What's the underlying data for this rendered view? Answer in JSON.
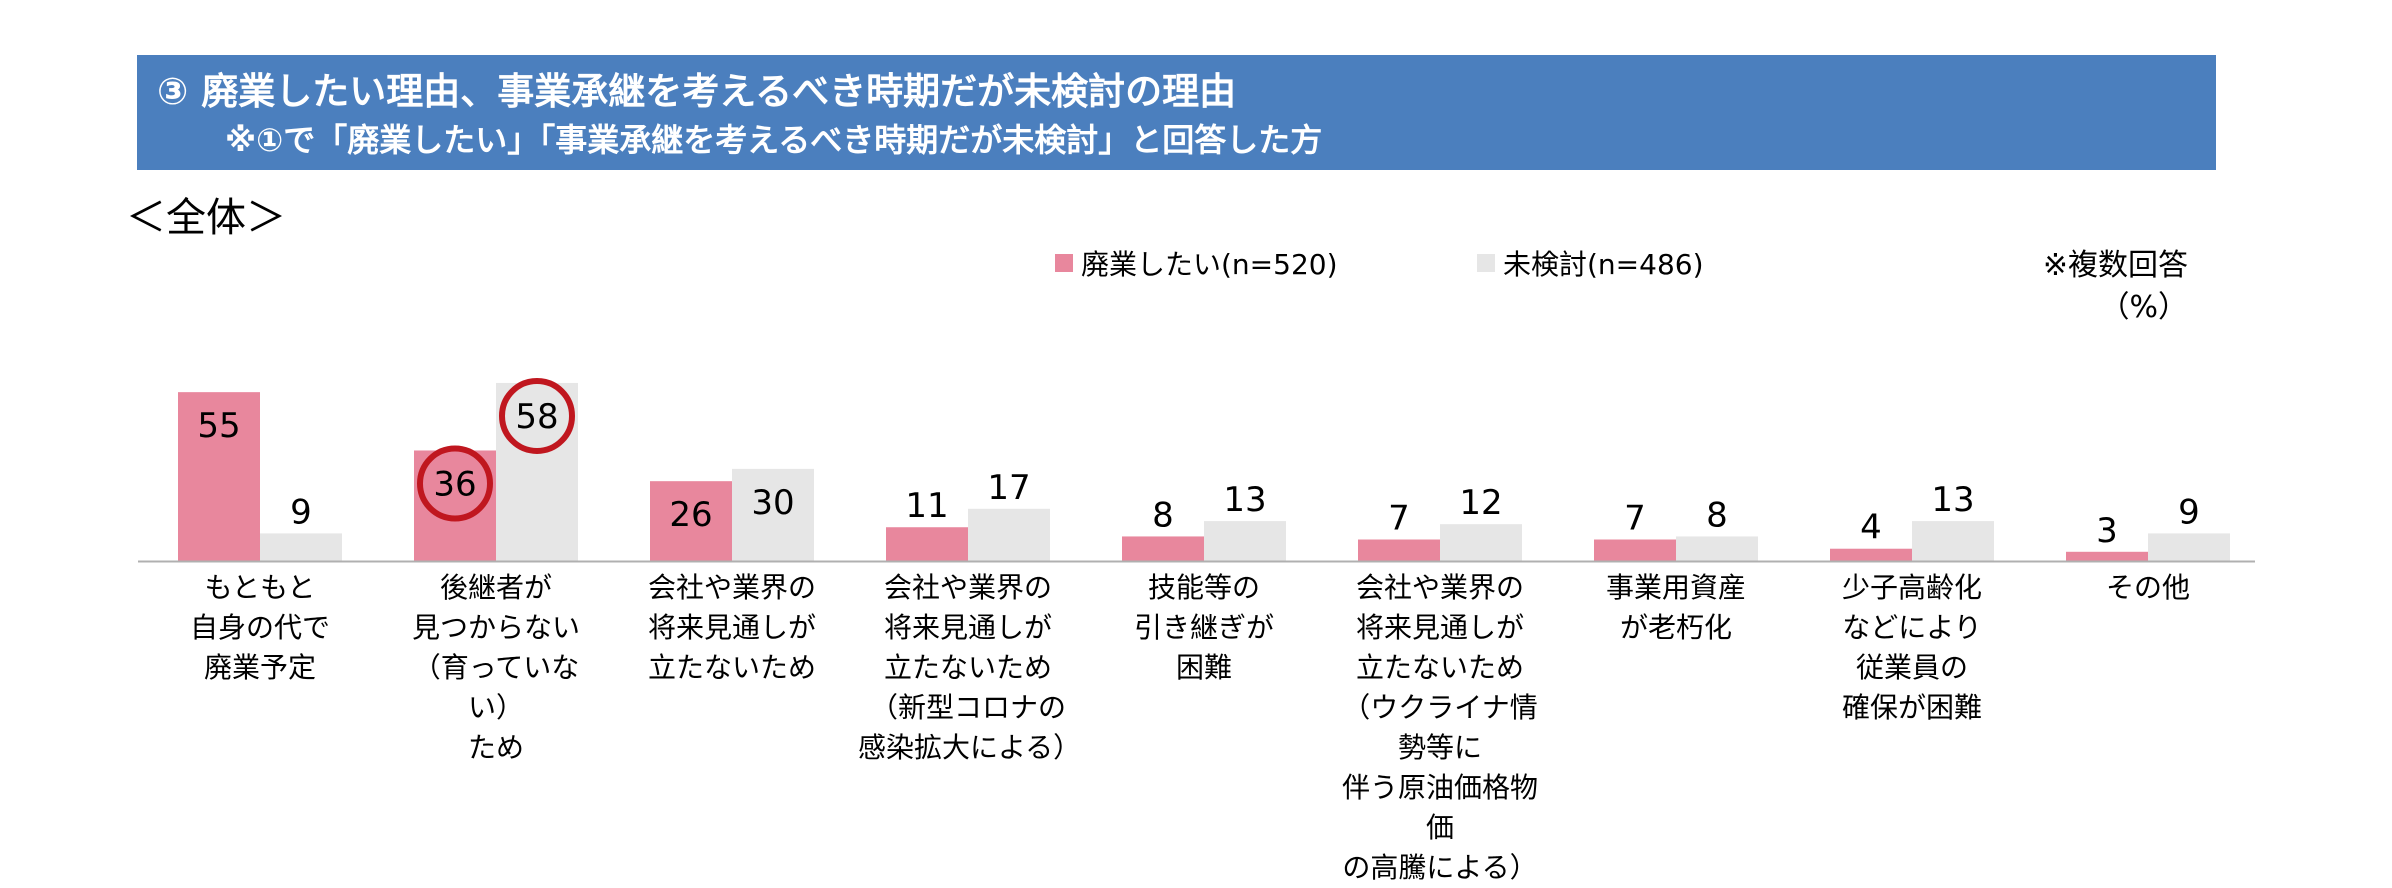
{
  "banner": {
    "title": "③ 廃業したい理由、事業承継を考えるべき時期だが未検討の理由",
    "subtitle": "※①で「廃業したい」「事業承継を考えるべき時期だが未検討」と回答した方"
  },
  "section_label": "＜全体＞",
  "note": {
    "multi": "※複数回答",
    "unit": "（%）"
  },
  "colors": {
    "banner": "#4b7fbe",
    "series_a": "#e8879d",
    "series_b": "#e6e6e6",
    "highlight_ring": "#c0171f",
    "axis": "#b0b0b0"
  },
  "chart_data": {
    "type": "bar",
    "categories": [
      "もともと\n自身の代で\n廃業予定",
      "後継者が\n見つからない\n（育っていない）\nため",
      "会社や業界の\n将来見通しが\n立たないため",
      "会社や業界の\n将来見通しが\n立たないため\n（新型コロナの\n感染拡大による）",
      "技能等の\n引き継ぎが\n困難",
      "会社や業界の\n将来見通しが\n立たないため\n（ウクライナ情勢等に\n伴う原油価格物価\nの高騰による）",
      "事業用資産\nが老朽化",
      "少子高齢化\nなどにより\n従業員の\n確保が困難",
      "その他"
    ],
    "series": [
      {
        "name": "廃業したい(n=520)",
        "values": [
          55,
          36,
          26,
          11,
          8,
          7,
          7,
          4,
          3
        ]
      },
      {
        "name": "未検討(n=486)",
        "values": [
          9,
          58,
          30,
          17,
          13,
          12,
          8,
          13,
          9
        ]
      }
    ],
    "highlighted": [
      {
        "series": 0,
        "category": 1
      },
      {
        "series": 1,
        "category": 1
      }
    ],
    "ylim": [
      0,
      60
    ],
    "legend": "top-center"
  }
}
